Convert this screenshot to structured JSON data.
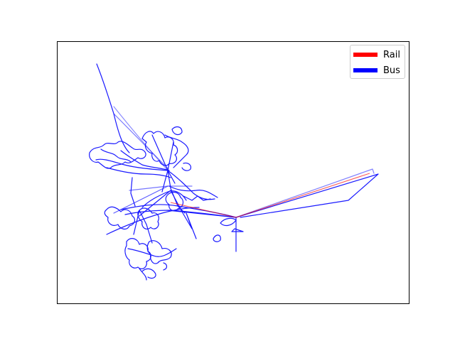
{
  "map": {
    "colors": {
      "rail": "#ff0000",
      "bus": "#0000ff",
      "frame": "#000000"
    },
    "legend": {
      "placement": "top-right",
      "entries": [
        {
          "label": "Rail",
          "color": "#ff0000"
        },
        {
          "label": "Bus",
          "color": "#0000ff"
        }
      ]
    },
    "axes": {
      "ticks_visible": false,
      "grid": false
    }
  }
}
